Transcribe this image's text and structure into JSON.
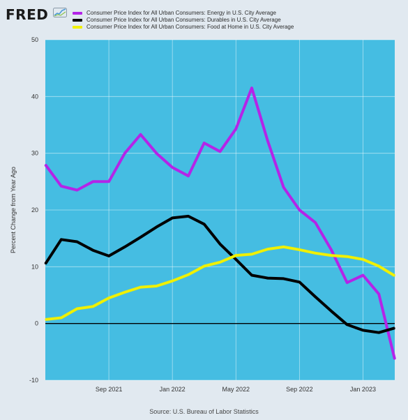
{
  "logo": {
    "text": "FRED"
  },
  "legend": [
    {
      "label": "Consumer Price Index for All Urban Consumers: Energy in U.S. City Average",
      "color": "#b424e8"
    },
    {
      "label": "Consumer Price Index for All Urban Consumers: Durables in U.S. City Average",
      "color": "#000000"
    },
    {
      "label": "Consumer Price Index for All Urban Consumers: Food at Home in U.S. City Average",
      "color": "#f0f000"
    }
  ],
  "source": "Source: U.S. Bureau of Labor Statistics",
  "chart_data": {
    "type": "line",
    "ylabel": "Percent Change from Year Ago",
    "xlabel": "",
    "ylim": [
      -10,
      50
    ],
    "yticks": [
      -10,
      0,
      10,
      20,
      30,
      40,
      50
    ],
    "grid": true,
    "plot_background": "#45bde2",
    "zero_line": true,
    "x": [
      "2021-05",
      "2021-06",
      "2021-07",
      "2021-08",
      "2021-09",
      "2021-10",
      "2021-11",
      "2021-12",
      "2022-01",
      "2022-02",
      "2022-03",
      "2022-04",
      "2022-05",
      "2022-06",
      "2022-07",
      "2022-08",
      "2022-09",
      "2022-10",
      "2022-11",
      "2022-12",
      "2023-01",
      "2023-02",
      "2023-03"
    ],
    "xticks": [
      {
        "x": "2021-09",
        "label": "Sep 2021"
      },
      {
        "x": "2022-01",
        "label": "Jan 2022"
      },
      {
        "x": "2022-05",
        "label": "May 2022"
      },
      {
        "x": "2022-09",
        "label": "Sep 2022"
      },
      {
        "x": "2023-01",
        "label": "Jan 2023"
      }
    ],
    "series": [
      {
        "name": "Consumer Price Index for All Urban Consumers: Energy in U.S. City Average",
        "color": "#b424e8",
        "values": [
          28.0,
          24.2,
          23.5,
          25.0,
          25.0,
          30.0,
          33.3,
          30.0,
          27.5,
          26.0,
          31.8,
          30.3,
          34.3,
          41.5,
          32.2,
          24.0,
          20.0,
          17.8,
          13.0,
          7.2,
          8.5,
          5.2,
          -6.3
        ]
      },
      {
        "name": "Consumer Price Index for All Urban Consumers: Durables in U.S. City Average",
        "color": "#000000",
        "values": [
          10.5,
          14.8,
          14.4,
          12.9,
          11.9,
          13.5,
          15.2,
          17.0,
          18.6,
          18.9,
          17.5,
          14.0,
          11.3,
          8.5,
          8.0,
          7.9,
          7.3,
          4.7,
          2.2,
          -0.2,
          -1.2,
          -1.6,
          -0.8
        ]
      },
      {
        "name": "Consumer Price Index for All Urban Consumers: Food at Home in U.S. City Average",
        "color": "#f0f000",
        "values": [
          0.7,
          1.0,
          2.6,
          3.0,
          4.5,
          5.5,
          6.4,
          6.6,
          7.5,
          8.6,
          10.1,
          10.8,
          12.0,
          12.2,
          13.1,
          13.5,
          13.0,
          12.4,
          12.0,
          11.8,
          11.3,
          10.1,
          8.4
        ]
      }
    ]
  }
}
